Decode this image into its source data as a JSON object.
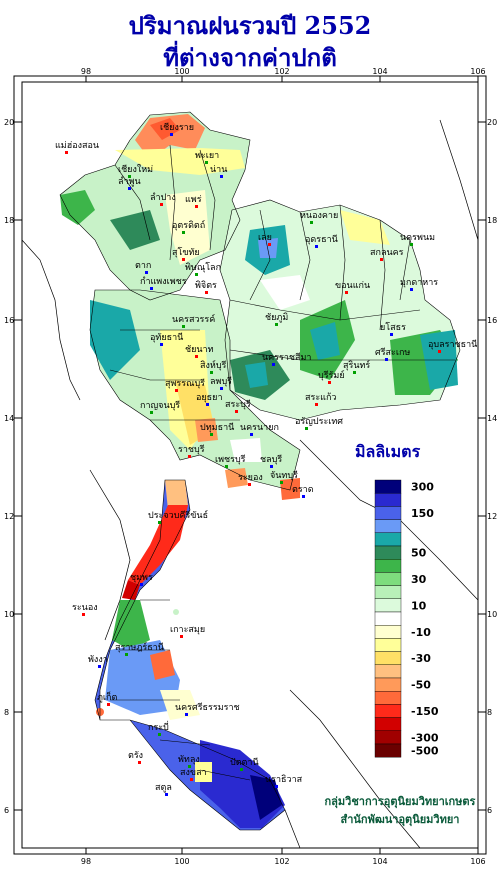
{
  "title": {
    "line1": "ปริมาณฝนรวมปี  2552",
    "line2": "ที่ต่างจากค่าปกติ"
  },
  "axes": {
    "lon_ticks": [
      "98",
      "100",
      "102",
      "104",
      "106"
    ],
    "lat_ticks": [
      "20",
      "18",
      "16",
      "14",
      "12",
      "10",
      "8",
      "6"
    ]
  },
  "legend": {
    "title": "มิลลิเมตร",
    "classes": [
      {
        "label": "300",
        "color": "#00007a"
      },
      {
        "label": "",
        "color": "#2a2ad0"
      },
      {
        "label": "150",
        "color": "#4a62ea"
      },
      {
        "label": "",
        "color": "#6a9af6"
      },
      {
        "label": "",
        "color": "#1aa8a8"
      },
      {
        "label": "50",
        "color": "#2e8a5a"
      },
      {
        "label": "",
        "color": "#3db54a"
      },
      {
        "label": "30",
        "color": "#7edc7e"
      },
      {
        "label": "",
        "color": "#b8f0b8"
      },
      {
        "label": "10",
        "color": "#dcfadc"
      },
      {
        "label": "",
        "color": "#ffffff"
      },
      {
        "label": "-10",
        "color": "#ffffd0"
      },
      {
        "label": "",
        "color": "#ffff99"
      },
      {
        "label": "-30",
        "color": "#ffe066"
      },
      {
        "label": "",
        "color": "#ffc080"
      },
      {
        "label": "-50",
        "color": "#ff9a5a"
      },
      {
        "label": "",
        "color": "#ff6a3a"
      },
      {
        "label": "-150",
        "color": "#ff2a1a"
      },
      {
        "label": "",
        "color": "#d20000"
      },
      {
        "label": "-300",
        "color": "#a00000"
      },
      {
        "label": "-500",
        "color": "#6a0000"
      }
    ]
  },
  "places": [
    "เชียงราย",
    "แม่ฮ่องสอน",
    "เชียงใหม่",
    "ลำพูน",
    "ลำปาง",
    "พะเยา",
    "น่าน",
    "แพร่",
    "อุตรดิตถ์",
    "ตาก",
    "สุโขทัย",
    "พิษณุโลก",
    "กำแพงเพชร",
    "พิจิตร",
    "นครสวรรค์",
    "อุทัยธานี",
    "ชัยนาท",
    "สิงห์บุรี",
    "ลพบุรี",
    "สุพรรณบุรี",
    "กาญจนบุรี",
    "อยุธยา",
    "สระบุรี",
    "ปทุมธานี",
    "นครนายก",
    "ราชบุรี",
    "เพชรบุรี",
    "ชลบุรี",
    "ระยอง",
    "จันทบุรี",
    "ตราด",
    "เลย",
    "หนองคาย",
    "อุดรธานี",
    "สกลนคร",
    "นครพนม",
    "มุกดาหาร",
    "ขอนแก่น",
    "ชัยภูมิ",
    "นครราชสีมา",
    "บุรีรัมย์",
    "สุรินทร์",
    "ศรีสะเกษ",
    "อุบลราชธานี",
    "ประจวบคีรีขันธ์",
    "ชุมพร",
    "ระนอง",
    "สุราษฎร์ธานี",
    "พังงา",
    "ภูเก็ต",
    "กระบี่",
    "นครศรีธรรมราช",
    "ตรัง",
    "พัทลุง",
    "สตูล",
    "สงขลา",
    "ปัตตานี",
    "นราธิวาส",
    "เกาะสมุย",
    "อรัญประเทศ",
    "ยโสธร",
    "สระแก้ว"
  ],
  "credit": {
    "line1": "กลุ่มวิชาการอุตุนิยมวิทยาเกษตร",
    "line2": "สำนักพัฒนาอุตุนิยมวิทยา"
  }
}
